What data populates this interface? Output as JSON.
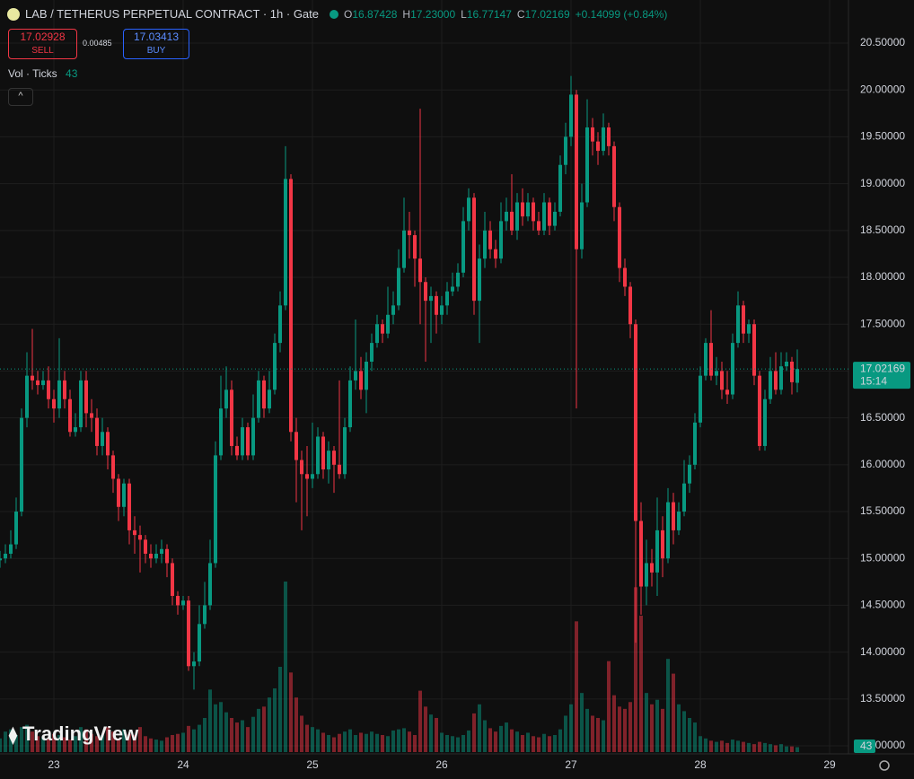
{
  "header": {
    "symbol": "LAB / TETHERUS PERPETUAL CONTRACT · 1h · Gate",
    "ohlc": [
      {
        "label": "O",
        "value": "16.87428"
      },
      {
        "label": "H",
        "value": "17.23000"
      },
      {
        "label": "L",
        "value": "16.77147"
      },
      {
        "label": "C",
        "value": "17.02169"
      }
    ],
    "change": "+0.14099 (+0.84%)",
    "sell": {
      "price": "17.02928",
      "label": "SELL"
    },
    "spread": "0.00485",
    "buy": {
      "price": "17.03413",
      "label": "BUY"
    },
    "indicator": "Vol · Ticks",
    "logo": "TradingView"
  },
  "chart_data": {
    "type": "candlestick",
    "up_color": "#089981",
    "down_color": "#f23645",
    "grid": true,
    "countdown": "15:14",
    "open": [
      14.98,
      15.0,
      15.05,
      15.15,
      15.5,
      16.5,
      16.95,
      16.9,
      16.85,
      16.9,
      16.7,
      16.6,
      16.9,
      16.7,
      16.35,
      16.4,
      16.9,
      16.55,
      16.5,
      16.2,
      16.35,
      16.1,
      15.85,
      15.55,
      15.8,
      15.3,
      15.25,
      15.2,
      15.05,
      15.0,
      15.05,
      15.1,
      14.95,
      14.6,
      14.5,
      14.55,
      13.85,
      13.9,
      14.3,
      14.5,
      14.95,
      16.1,
      16.6,
      16.8,
      16.2,
      16.1,
      16.4,
      16.1,
      16.5,
      16.9,
      16.6,
      16.8,
      17.3,
      17.7,
      19.05,
      16.35,
      16.05,
      15.9,
      15.85,
      15.9,
      16.3,
      15.95,
      16.15,
      16.0,
      15.9,
      16.4,
      16.9,
      17.0,
      16.8,
      17.1,
      17.3,
      17.5,
      17.4,
      17.6,
      17.7,
      18.1,
      18.5,
      18.45,
      18.2,
      17.95,
      17.75,
      17.8,
      17.6,
      17.7,
      17.85,
      17.9,
      18.05,
      18.6,
      18.85,
      17.75,
      18.2,
      18.5,
      18.3,
      18.2,
      18.6,
      18.7,
      18.5,
      18.8,
      18.65,
      18.8,
      18.6,
      18.5,
      18.8,
      18.55,
      18.7,
      19.2,
      19.5,
      19.95,
      18.3,
      18.8,
      19.6,
      19.45,
      19.35,
      19.6,
      19.4,
      18.75,
      18.1,
      17.9,
      17.5,
      15.4,
      14.7,
      14.95,
      14.85,
      15.3,
      15.0,
      15.6,
      15.3,
      15.5,
      15.8,
      16.0,
      16.45,
      16.95,
      17.3,
      16.95,
      17.0,
      16.8,
      16.75,
      17.3,
      17.7,
      17.4,
      17.5,
      16.95,
      16.2,
      16.7,
      17.0,
      16.8,
      17.05,
      17.1,
      16.87428
    ],
    "high": [
      15.08,
      15.15,
      15.3,
      15.65,
      16.6,
      17.2,
      17.45,
      17.0,
      17.0,
      17.05,
      16.8,
      17.35,
      17.0,
      16.8,
      16.55,
      17.0,
      17.0,
      16.7,
      16.6,
      16.5,
      16.4,
      16.15,
      15.9,
      15.85,
      15.85,
      15.45,
      15.35,
      15.25,
      15.15,
      15.15,
      15.2,
      15.15,
      15.0,
      14.65,
      14.6,
      14.6,
      14.0,
      14.5,
      14.75,
      15.2,
      16.25,
      16.95,
      17.05,
      16.9,
      16.3,
      16.5,
      16.45,
      16.75,
      17.0,
      16.95,
      17.0,
      17.4,
      17.85,
      19.4,
      19.1,
      16.5,
      16.15,
      16.2,
      16.45,
      16.4,
      16.35,
      16.25,
      16.2,
      16.9,
      16.5,
      17.05,
      17.55,
      17.15,
      17.2,
      17.4,
      17.6,
      17.55,
      17.9,
      17.85,
      18.3,
      18.85,
      18.7,
      18.5,
      19.8,
      18.0,
      17.9,
      17.85,
      17.8,
      17.95,
      18.05,
      18.15,
      18.75,
      18.95,
      18.9,
      18.35,
      18.7,
      18.6,
      18.4,
      18.8,
      18.85,
      19.1,
      18.9,
      18.95,
      18.9,
      18.85,
      18.7,
      18.9,
      18.85,
      18.8,
      19.3,
      19.65,
      20.15,
      20.0,
      19.0,
      19.9,
      19.7,
      19.55,
      19.75,
      19.65,
      19.45,
      18.8,
      18.2,
      17.95,
      17.55,
      15.6,
      15.2,
      15.1,
      15.65,
      15.45,
      15.75,
      15.7,
      15.6,
      16.05,
      16.1,
      16.55,
      17.05,
      17.35,
      17.65,
      17.15,
      17.1,
      17.0,
      17.4,
      17.85,
      17.75,
      17.55,
      17.55,
      17.0,
      16.8,
      17.15,
      17.2,
      17.2,
      17.2,
      17.15,
      17.23
    ],
    "low": [
      14.9,
      14.95,
      15.0,
      15.1,
      15.45,
      16.4,
      16.8,
      16.75,
      16.8,
      16.6,
      16.45,
      16.5,
      16.6,
      16.3,
      16.3,
      16.35,
      16.4,
      16.35,
      16.1,
      16.1,
      15.95,
      15.7,
      15.4,
      15.45,
      15.15,
      15.05,
      14.85,
      14.95,
      14.9,
      14.95,
      14.95,
      14.8,
      14.5,
      14.4,
      14.45,
      13.8,
      13.6,
      13.85,
      14.25,
      14.45,
      14.9,
      16.05,
      16.5,
      16.1,
      16.05,
      16.05,
      16.05,
      16.05,
      16.45,
      16.5,
      16.55,
      16.75,
      17.2,
      17.65,
      16.25,
      15.6,
      15.3,
      15.45,
      15.75,
      15.85,
      15.85,
      15.8,
      15.7,
      15.85,
      15.85,
      16.35,
      16.8,
      16.7,
      16.55,
      17.0,
      17.25,
      17.3,
      17.35,
      17.5,
      17.65,
      18.05,
      18.2,
      17.9,
      17.5,
      17.1,
      17.3,
      17.4,
      17.5,
      17.6,
      17.8,
      17.85,
      18.0,
      18.5,
      17.6,
      17.3,
      18.1,
      18.2,
      18.1,
      18.15,
      18.5,
      18.45,
      18.4,
      18.55,
      18.6,
      18.5,
      18.45,
      18.45,
      18.45,
      18.5,
      18.65,
      19.1,
      19.4,
      16.6,
      18.2,
      18.75,
      19.3,
      19.2,
      19.3,
      19.3,
      18.6,
      17.95,
      17.8,
      17.35,
      14.1,
      14.4,
      14.5,
      14.7,
      14.6,
      14.8,
      14.95,
      15.15,
      15.25,
      15.45,
      15.7,
      15.95,
      16.4,
      16.9,
      16.9,
      16.85,
      16.7,
      16.65,
      16.7,
      17.25,
      17.3,
      17.3,
      16.85,
      16.15,
      16.15,
      16.65,
      16.75,
      16.75,
      17.0,
      16.75,
      16.77147
    ],
    "close": [
      15.0,
      15.05,
      15.15,
      15.5,
      16.5,
      16.95,
      16.9,
      16.85,
      16.9,
      16.7,
      16.6,
      16.9,
      16.7,
      16.35,
      16.4,
      16.9,
      16.55,
      16.5,
      16.2,
      16.35,
      16.1,
      15.85,
      15.55,
      15.8,
      15.3,
      15.25,
      15.2,
      15.05,
      15.0,
      15.05,
      15.1,
      14.95,
      14.6,
      14.5,
      14.55,
      13.85,
      13.9,
      14.3,
      14.5,
      14.95,
      16.1,
      16.6,
      16.8,
      16.2,
      16.1,
      16.4,
      16.1,
      16.5,
      16.9,
      16.6,
      16.8,
      17.3,
      17.7,
      19.05,
      16.35,
      16.05,
      15.9,
      15.85,
      15.9,
      16.3,
      15.95,
      16.15,
      16.0,
      15.9,
      16.4,
      16.9,
      17.0,
      16.8,
      17.1,
      17.3,
      17.5,
      17.4,
      17.6,
      17.7,
      18.1,
      18.5,
      18.45,
      18.2,
      17.95,
      17.75,
      17.8,
      17.6,
      17.7,
      17.85,
      17.9,
      18.05,
      18.6,
      18.85,
      17.75,
      18.2,
      18.5,
      18.3,
      18.2,
      18.6,
      18.7,
      18.5,
      18.8,
      18.65,
      18.8,
      18.6,
      18.5,
      18.8,
      18.55,
      18.7,
      19.2,
      19.5,
      19.95,
      18.3,
      18.8,
      19.6,
      19.45,
      19.35,
      19.6,
      19.4,
      18.75,
      18.1,
      17.9,
      17.5,
      15.4,
      14.7,
      14.95,
      14.85,
      15.3,
      15.0,
      15.6,
      15.3,
      15.5,
      15.8,
      16.0,
      16.45,
      16.95,
      17.3,
      16.95,
      17.0,
      16.8,
      16.75,
      17.3,
      17.7,
      17.4,
      17.5,
      16.95,
      16.2,
      16.7,
      17.0,
      16.8,
      17.05,
      17.1,
      16.8807,
      17.02169
    ],
    "volume": [
      120,
      180,
      200,
      150,
      220,
      240,
      180,
      140,
      130,
      120,
      160,
      150,
      130,
      110,
      140,
      220,
      200,
      160,
      140,
      150,
      220,
      180,
      120,
      200,
      160,
      150,
      220,
      140,
      120,
      110,
      100,
      130,
      150,
      160,
      170,
      230,
      200,
      240,
      300,
      550,
      420,
      440,
      350,
      300,
      260,
      280,
      220,
      310,
      380,
      400,
      480,
      560,
      750,
      1500,
      700,
      480,
      320,
      240,
      220,
      200,
      170,
      150,
      130,
      160,
      180,
      200,
      150,
      170,
      160,
      180,
      160,
      150,
      140,
      190,
      200,
      210,
      180,
      150,
      540,
      400,
      330,
      300,
      170,
      150,
      140,
      130,
      150,
      190,
      340,
      420,
      280,
      210,
      180,
      230,
      260,
      200,
      180,
      150,
      170,
      140,
      130,
      160,
      140,
      150,
      200,
      320,
      420,
      1150,
      520,
      380,
      320,
      300,
      280,
      800,
      500,
      400,
      380,
      440,
      1450,
      1200,
      520,
      420,
      460,
      380,
      820,
      690,
      420,
      360,
      300,
      260,
      140,
      120,
      100,
      90,
      100,
      80,
      110,
      100,
      90,
      80,
      70,
      90,
      80,
      70,
      60,
      70,
      50,
      50,
      43
    ],
    "xlim": [
      0,
      157.5
    ],
    "xticks": [
      {
        "value": 10,
        "label": "23"
      },
      {
        "value": 34,
        "label": "24"
      },
      {
        "value": 58,
        "label": "25"
      },
      {
        "value": 82,
        "label": "26"
      },
      {
        "value": 106,
        "label": "27"
      },
      {
        "value": 130,
        "label": "28"
      },
      {
        "value": 154,
        "label": "29"
      }
    ],
    "ylim": [
      12.914,
      20.96
    ],
    "yticks": [
      {
        "value": 13,
        "label": "13.00000"
      },
      {
        "value": 13.5,
        "label": "13.50000"
      },
      {
        "value": 14,
        "label": "14.00000"
      },
      {
        "value": 14.5,
        "label": "14.50000"
      },
      {
        "value": 15,
        "label": "15.00000"
      },
      {
        "value": 15.5,
        "label": "15.50000"
      },
      {
        "value": 16,
        "label": "16.00000"
      },
      {
        "value": 16.5,
        "label": "16.50000"
      },
      {
        "value": 17,
        "label": "17.00000"
      },
      {
        "value": 17.5,
        "label": "17.50000"
      },
      {
        "value": 18,
        "label": "18.00000"
      },
      {
        "value": 18.5,
        "label": "18.50000"
      },
      {
        "value": 19,
        "label": "19.00000"
      },
      {
        "value": 19.5,
        "label": "19.50000"
      },
      {
        "value": 20,
        "label": "20.00000"
      },
      {
        "value": 20.5,
        "label": "20.50000"
      }
    ]
  }
}
